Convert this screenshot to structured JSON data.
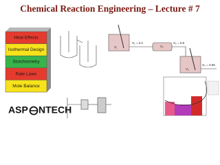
{
  "header": {
    "title": "Chemical Reaction Engineering – Lecture # 7"
  },
  "blocks": [
    "Heat Effects",
    "Isothermal Design",
    "Stoichiometry",
    "Rate Laws",
    "Mole Balance"
  ],
  "logo": {
    "left": "ASP",
    "right": "NTECH"
  },
  "reactor_series": {
    "conversions": [
      "X₁ = 0.2",
      "X₂ = 0.6",
      "X₃ = 0.65"
    ],
    "volumes": [
      "V₁",
      "V₂",
      "V₃"
    ]
  }
}
